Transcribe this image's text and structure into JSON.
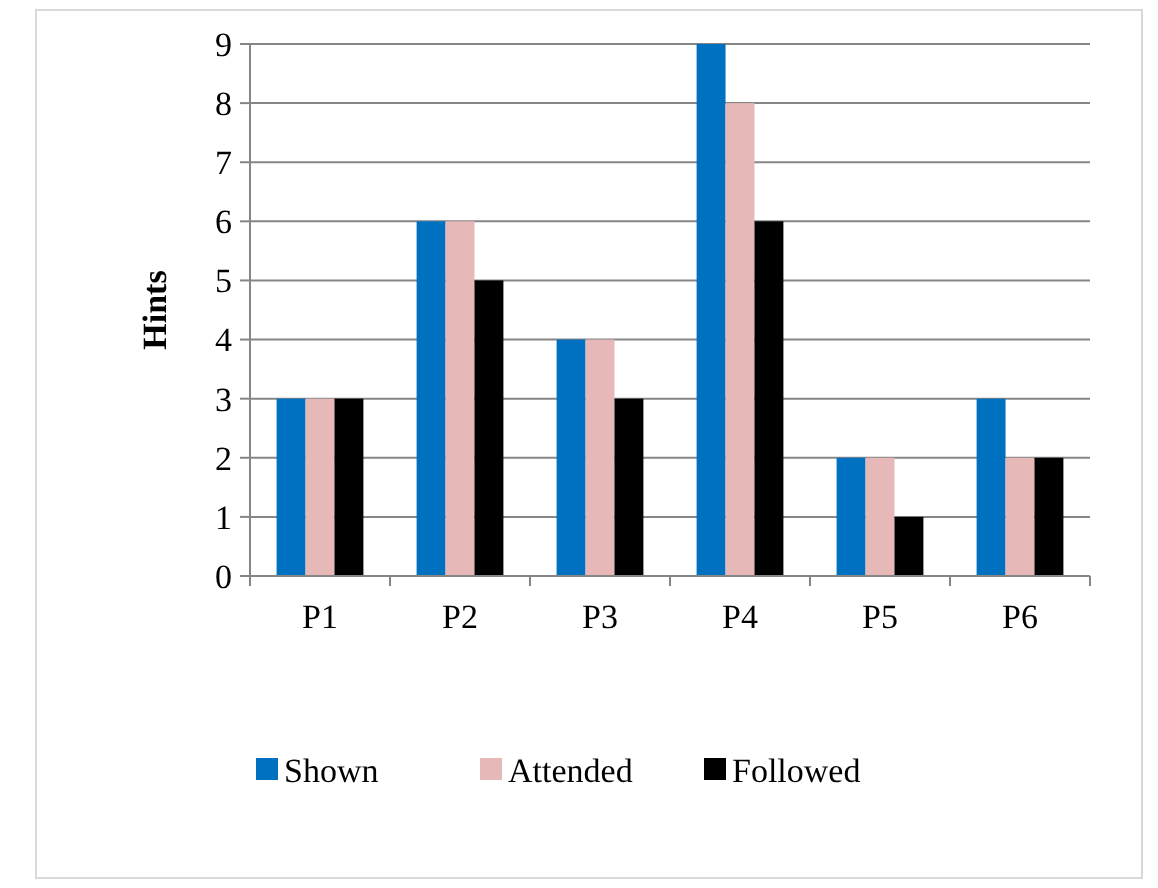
{
  "chart_data": {
    "type": "bar",
    "ylabel": "Hints",
    "categories": [
      "P1",
      "P2",
      "P3",
      "P4",
      "P5",
      "P6"
    ],
    "series": [
      {
        "name": "Shown",
        "color": "#0070c0",
        "values": [
          3,
          6,
          4,
          9,
          2,
          3
        ]
      },
      {
        "name": "Attended",
        "color": "#e6b9b8",
        "values": [
          3,
          6,
          4,
          8,
          2,
          2
        ]
      },
      {
        "name": "Followed",
        "color": "#000000",
        "values": [
          3,
          5,
          3,
          6,
          1,
          2
        ]
      }
    ],
    "ylim": [
      0,
      9
    ],
    "yticks": [
      0,
      1,
      2,
      3,
      4,
      5,
      6,
      7,
      8,
      9
    ],
    "grid": "y",
    "legend": "bottom"
  }
}
